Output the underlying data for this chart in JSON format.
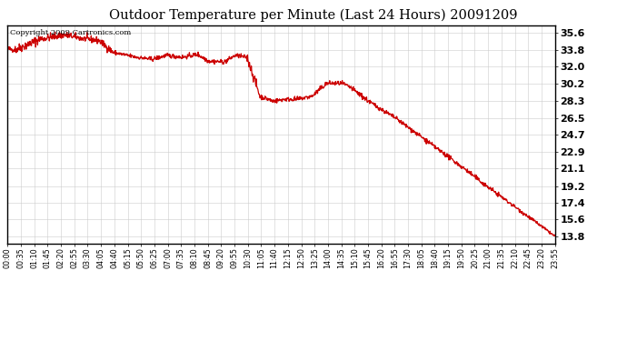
{
  "title": "Outdoor Temperature per Minute (Last 24 Hours) 20091209",
  "copyright_text": "Copyright 2009 Cartronics.com",
  "line_color": "#cc0000",
  "background_color": "#ffffff",
  "grid_color": "#cccccc",
  "yticks": [
    13.8,
    15.6,
    17.4,
    19.2,
    21.1,
    22.9,
    24.7,
    26.5,
    28.3,
    30.2,
    32.0,
    33.8,
    35.6
  ],
  "xtick_labels": [
    "00:00",
    "00:35",
    "01:10",
    "01:45",
    "02:20",
    "02:55",
    "03:30",
    "04:05",
    "04:40",
    "05:15",
    "05:50",
    "06:25",
    "07:00",
    "07:35",
    "08:10",
    "08:45",
    "09:20",
    "09:55",
    "10:30",
    "11:05",
    "11:40",
    "12:15",
    "12:50",
    "13:25",
    "14:00",
    "14:35",
    "15:10",
    "15:45",
    "16:20",
    "16:55",
    "17:30",
    "18:05",
    "18:40",
    "19:15",
    "19:50",
    "20:25",
    "21:00",
    "21:35",
    "22:10",
    "22:45",
    "23:20",
    "23:55"
  ],
  "ymin": 13.0,
  "ymax": 36.4,
  "n_minutes": 1440
}
